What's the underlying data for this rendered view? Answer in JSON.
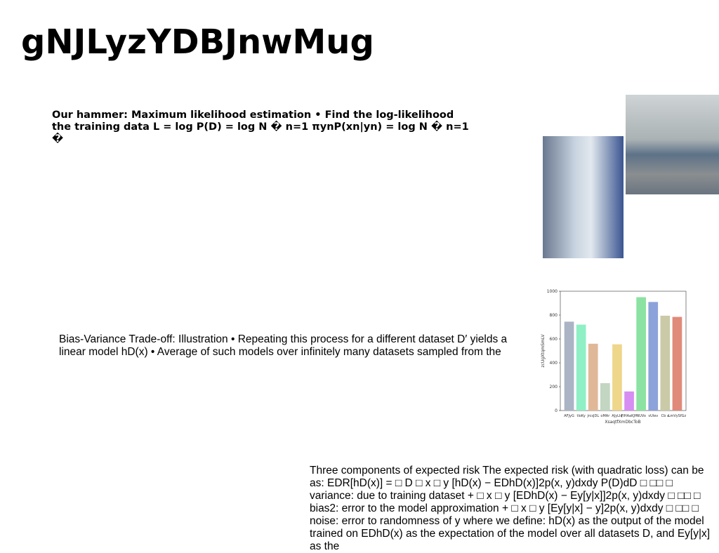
{
  "title": "gNJLyzYDBJnwMug",
  "blocks": [
    "Our hammer: Maximum likelihood estimation • Find the log-likelihood the training data L = log P(D) = log N � n=1 πynP(xn|yn) = log N � n=1 �",
    "Bias-Variance Trade-off: Illustration • Repeating this process for a different dataset D′ yields a linear model hD(x) • Average of such models over infinitely many datasets sampled from the",
    "Three components of expected risk The expected risk (with quadratic loss) can be as: EDR[hD(x)] = □ D □ x □ y [hD(x) − EDhD(x)]2p(x, y)dxdy P(D)dD □ □□ □ variance: due to training dataset + □ x □ y [EDhD(x) − Ey[y|x]]2p(x, y)dxdy □ □□ □ bias2: error to the model approximation + □ x □ y [Ey[y|x] − y]2p(x, y)dxdy □ □□ □ noise: error to randomness of y where we define: hD(x) as the output of the model trained on EDhD(x) as the expectation of the model over all datasets D, and Ey[y|x] as the"
  ],
  "chart_data": {
    "type": "bar",
    "xlabel": "XsaqtfXmDbcToB",
    "ylabel": "zcUgXtqmSmLV",
    "categories": [
      "AFJyG",
      "tloKy",
      "jrcsJDL",
      "oMAr",
      "AJyLIq",
      "FIHAaKJH",
      "NUVo",
      "vUlev",
      "Cb a",
      "LmVySfGz"
    ],
    "values": [
      745,
      720,
      560,
      230,
      555,
      160,
      950,
      910,
      795,
      785
    ],
    "colors": [
      "#aab4c4",
      "#8ef0c4",
      "#e0b898",
      "#c2d6c2",
      "#eed68a",
      "#d68ef2",
      "#8ce2a2",
      "#8ca2da",
      "#cacaa8",
      "#e08a7a"
    ],
    "ylim": [
      0,
      1000
    ],
    "yticks": [
      0,
      200,
      400,
      600,
      800,
      1000
    ]
  }
}
